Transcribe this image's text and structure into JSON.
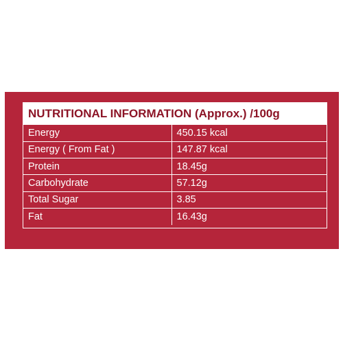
{
  "title": "NUTRITIONAL INFORMATION (Approx.) /100g",
  "rows": [
    {
      "label": "Energy",
      "value": "450.15 kcal"
    },
    {
      "label": "Energy ( From Fat )",
      "value": "147.87 kcal"
    },
    {
      "label": "Protein",
      "value": "18.45g"
    },
    {
      "label": "Carbohydrate",
      "value": "57.12g"
    },
    {
      "label": "Total Sugar",
      "value": "3.85"
    },
    {
      "label": "Fat",
      "value": "16.43g"
    }
  ],
  "colors": {
    "panel": "#b5253a",
    "title_text": "#8c1426",
    "cell_text": "#ffffff"
  }
}
